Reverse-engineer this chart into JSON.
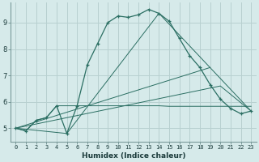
{
  "xlabel": "Humidex (Indice chaleur)",
  "bg_color": "#d6eaea",
  "grid_color": "#b8d0d0",
  "line_color": "#2a6e62",
  "xlim": [
    -0.5,
    23.5
  ],
  "ylim": [
    4.5,
    9.75
  ],
  "xticks": [
    0,
    1,
    2,
    3,
    4,
    5,
    6,
    7,
    8,
    9,
    10,
    11,
    12,
    13,
    14,
    15,
    16,
    17,
    18,
    19,
    20,
    21,
    22,
    23
  ],
  "yticks": [
    5,
    6,
    7,
    8,
    9
  ],
  "line1_x": [
    0,
    1,
    2,
    3,
    4,
    5,
    6,
    7,
    8,
    9,
    10,
    11,
    12,
    13,
    14,
    15,
    16,
    17,
    18,
    19,
    20,
    21,
    22,
    23
  ],
  "line1_y": [
    5.0,
    4.9,
    5.3,
    5.4,
    5.85,
    4.8,
    5.85,
    7.4,
    8.2,
    9.0,
    9.25,
    9.2,
    9.3,
    9.5,
    9.35,
    9.05,
    8.4,
    7.75,
    7.3,
    6.65,
    6.1,
    5.75,
    5.55,
    5.65
  ],
  "line2_x": [
    0,
    1,
    2,
    3,
    4,
    5,
    6,
    7,
    8,
    9,
    10,
    11,
    12,
    13,
    14,
    15,
    16,
    17,
    18,
    19,
    20,
    21,
    22,
    23
  ],
  "line2_y": [
    5.0,
    4.9,
    5.3,
    5.4,
    5.85,
    5.85,
    5.85,
    5.85,
    5.85,
    5.85,
    5.85,
    5.85,
    5.85,
    5.85,
    5.85,
    5.83,
    5.83,
    5.83,
    5.83,
    5.83,
    5.83,
    5.83,
    5.83,
    5.83
  ],
  "line3_x": [
    0,
    5,
    14,
    23
  ],
  "line3_y": [
    5.0,
    4.8,
    9.35,
    5.65
  ],
  "line4_x": [
    0,
    19
  ],
  "line4_y": [
    5.0,
    7.3
  ],
  "line5_x": [
    0,
    20,
    23
  ],
  "line5_y": [
    5.0,
    6.6,
    5.65
  ]
}
